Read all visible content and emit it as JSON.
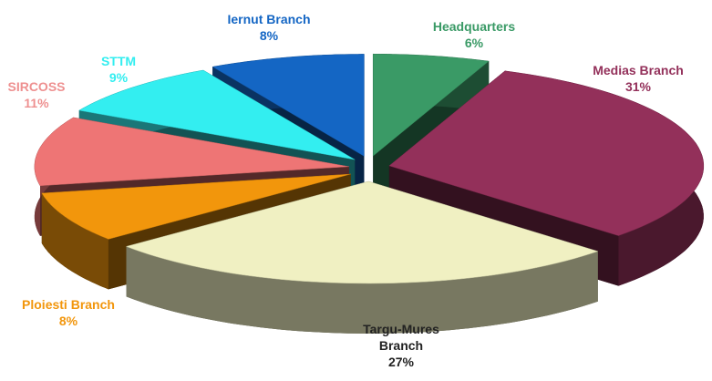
{
  "chart_data": {
    "type": "pie",
    "categories": [
      "Headquarters",
      "Medias Branch",
      "Targu-Mures Branch",
      "Ploiesti Branch",
      "SIRCOSS",
      "STTM",
      "Iernut Branch"
    ],
    "values": [
      6,
      31,
      27,
      8,
      11,
      9,
      8
    ],
    "value_labels": [
      "6%",
      "31%",
      "27%",
      "8%",
      "11%",
      "9%",
      "8%"
    ],
    "colors": [
      "#3a9a66",
      "#93305a",
      "#f0f0c2",
      "#f2960c",
      "#ee7575",
      "#33eef0",
      "#1466c4"
    ],
    "label_colors": [
      "#3a9a66",
      "#93305a",
      "#222222",
      "#f2960c",
      "#ee9090",
      "#33eef0",
      "#1466c4"
    ]
  }
}
